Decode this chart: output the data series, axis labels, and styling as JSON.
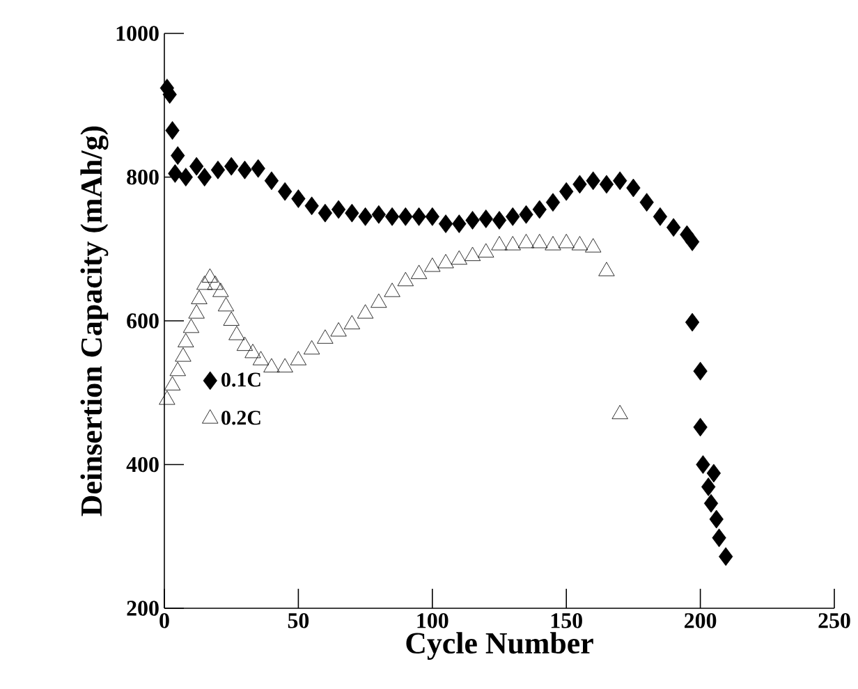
{
  "chart_data": {
    "type": "scatter",
    "xlabel": "Cycle Number",
    "ylabel": "Deinsertion Capacity (mAh/g)",
    "xlim": [
      0,
      250
    ],
    "ylim": [
      200,
      1000
    ],
    "xticks": [
      0,
      50,
      100,
      150,
      200,
      250
    ],
    "yticks": [
      200,
      400,
      600,
      800,
      1000
    ],
    "grid": false,
    "legend": "left",
    "series": [
      {
        "name": "0.1C",
        "color": "#000000",
        "marker": "diamond",
        "x": [
          1,
          2,
          3,
          4,
          5,
          8,
          12,
          15,
          20,
          25,
          30,
          35,
          40,
          45,
          50,
          55,
          60,
          65,
          70,
          75,
          80,
          85,
          90,
          95,
          100,
          105,
          110,
          115,
          120,
          125,
          130,
          135,
          140,
          145,
          150,
          155,
          160,
          165,
          170,
          175,
          180,
          185,
          190,
          195,
          197,
          197,
          200,
          200,
          201,
          203,
          204,
          205,
          206,
          207,
          209.5
        ],
        "values": [
          924,
          915,
          865,
          805,
          830,
          800,
          815,
          800,
          810,
          815,
          810,
          812,
          795,
          780,
          770,
          760,
          750,
          755,
          750,
          745,
          748,
          745,
          745,
          745,
          745,
          735,
          735,
          740,
          742,
          740,
          745,
          748,
          755,
          765,
          780,
          790,
          795,
          790,
          795,
          785,
          765,
          745,
          730,
          720,
          710,
          598,
          530,
          452,
          400,
          369,
          346,
          388,
          324,
          298,
          272
        ]
      },
      {
        "name": "0.2C",
        "color": "#000000",
        "marker": "triangle",
        "x": [
          1,
          3,
          5,
          7,
          8,
          10,
          12,
          13,
          15,
          17,
          19,
          21,
          23,
          25,
          27,
          30,
          33,
          36,
          40,
          45,
          50,
          55,
          60,
          65,
          70,
          75,
          80,
          85,
          90,
          95,
          100,
          105,
          110,
          115,
          120,
          125,
          130,
          135,
          140,
          145,
          150,
          155,
          160,
          165,
          170
        ],
        "values": [
          490,
          510,
          530,
          550,
          570,
          590,
          610,
          630,
          650,
          660,
          650,
          640,
          620,
          600,
          580,
          565,
          555,
          545,
          535,
          535,
          545,
          560,
          575,
          585,
          595,
          610,
          625,
          640,
          655,
          665,
          675,
          680,
          685,
          690,
          695,
          705,
          705,
          708,
          708,
          705,
          708,
          705,
          702,
          669,
          470
        ]
      }
    ]
  }
}
